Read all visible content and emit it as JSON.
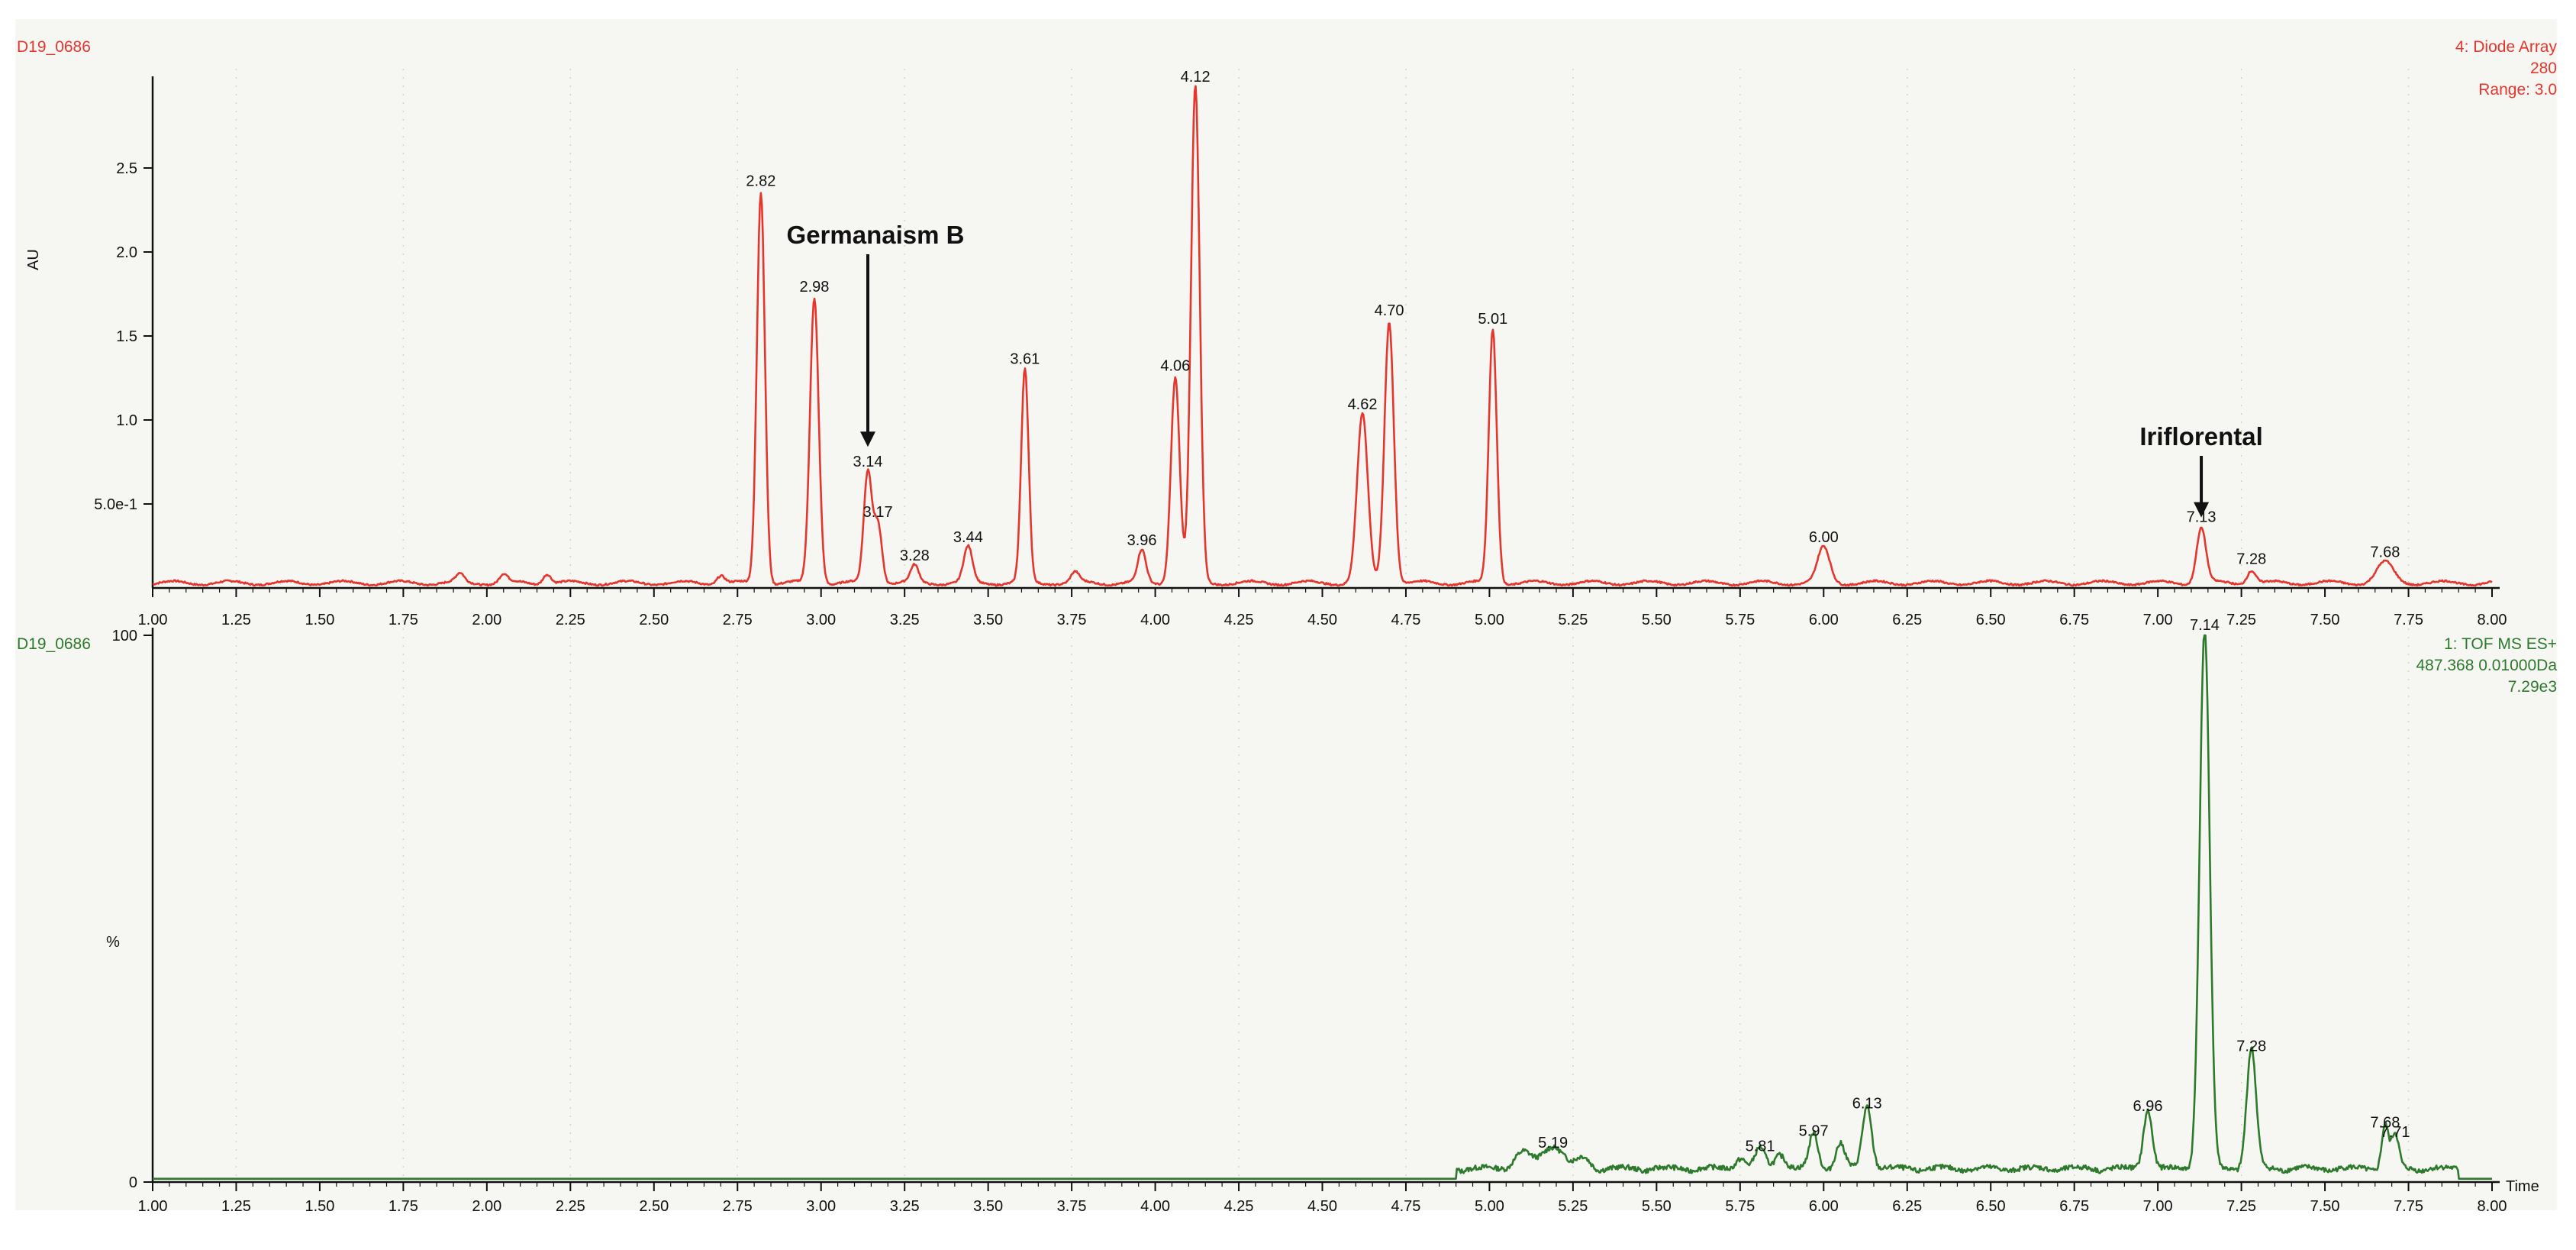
{
  "chart_data": [
    {
      "type": "line",
      "panel": "top",
      "color": "#e5362e",
      "sample": "D19_0686",
      "header_lines": [
        "4: Diode Array",
        "280",
        "Range: 3.0"
      ],
      "ylabel": "AU",
      "xlabel": "",
      "xlim": [
        1.0,
        8.0
      ],
      "ylim": [
        0,
        3.0
      ],
      "x_ticks": [
        "1.00",
        "1.25",
        "1.50",
        "1.75",
        "2.00",
        "2.25",
        "2.50",
        "2.75",
        "3.00",
        "3.25",
        "3.50",
        "3.75",
        "4.00",
        "4.25",
        "4.50",
        "4.75",
        "5.00",
        "5.25",
        "5.50",
        "5.75",
        "6.00",
        "6.25",
        "6.50",
        "6.75",
        "7.00",
        "7.25",
        "7.50",
        "7.75",
        "8.00"
      ],
      "y_ticks": [
        {
          "value": 0.5,
          "label": "5.0e-1"
        },
        {
          "value": 1.0,
          "label": "1.0"
        },
        {
          "value": 1.5,
          "label": "1.5"
        },
        {
          "value": 2.0,
          "label": "2.0"
        },
        {
          "value": 2.5,
          "label": "2.5"
        }
      ],
      "baseline": 0.03,
      "peaks": [
        {
          "x": 1.92,
          "y": 0.05,
          "w": 0.012
        },
        {
          "x": 2.05,
          "y": 0.05,
          "w": 0.012
        },
        {
          "x": 2.18,
          "y": 0.06,
          "w": 0.012
        },
        {
          "x": 2.7,
          "y": 0.05,
          "w": 0.012
        },
        {
          "x": 2.82,
          "y": 2.33,
          "w": 0.012,
          "label": "2.82"
        },
        {
          "x": 2.98,
          "y": 1.7,
          "w": 0.013,
          "label": "2.98"
        },
        {
          "x": 3.14,
          "y": 0.66,
          "w": 0.012,
          "label": "3.14"
        },
        {
          "x": 3.17,
          "y": 0.36,
          "w": 0.012,
          "label": "3.17"
        },
        {
          "x": 3.28,
          "y": 0.1,
          "w": 0.012,
          "label": "3.28"
        },
        {
          "x": 3.44,
          "y": 0.21,
          "w": 0.013,
          "label": "3.44"
        },
        {
          "x": 3.61,
          "y": 1.27,
          "w": 0.011,
          "label": "3.61"
        },
        {
          "x": 3.76,
          "y": 0.06,
          "w": 0.012
        },
        {
          "x": 3.96,
          "y": 0.19,
          "w": 0.012,
          "label": "3.96"
        },
        {
          "x": 4.06,
          "y": 1.23,
          "w": 0.013,
          "label": "4.06"
        },
        {
          "x": 4.12,
          "y": 2.95,
          "w": 0.013,
          "label": "4.12"
        },
        {
          "x": 4.62,
          "y": 1.0,
          "w": 0.016,
          "label": "4.62"
        },
        {
          "x": 4.7,
          "y": 1.56,
          "w": 0.014,
          "label": "4.70"
        },
        {
          "x": 5.01,
          "y": 1.51,
          "w": 0.012,
          "label": "5.01"
        },
        {
          "x": 6.0,
          "y": 0.21,
          "w": 0.018,
          "label": "6.00"
        },
        {
          "x": 7.13,
          "y": 0.33,
          "w": 0.014,
          "label": "7.13"
        },
        {
          "x": 7.28,
          "y": 0.08,
          "w": 0.013,
          "label": "7.28"
        },
        {
          "x": 7.68,
          "y": 0.12,
          "w": 0.025,
          "label": "7.68"
        }
      ],
      "annotations": [
        {
          "text": "Germanaism B",
          "x": 3.14,
          "y": 2.05,
          "arrow_to_y": 0.84
        },
        {
          "text": "Iriflorental",
          "x": 7.13,
          "y": 0.85,
          "arrow_to_y": 0.42
        }
      ]
    },
    {
      "type": "line",
      "panel": "bottom",
      "color": "#2e7a2c",
      "sample": "D19_0686",
      "header_lines": [
        "1: TOF MS ES+",
        "487.368 0.01000Da",
        "7.29e3"
      ],
      "ylabel": "%",
      "xlabel": "Time",
      "xlim": [
        1.0,
        8.0
      ],
      "ylim": [
        0,
        100
      ],
      "x_ticks": [
        "1.00",
        "1.25",
        "1.50",
        "1.75",
        "2.00",
        "2.25",
        "2.50",
        "2.75",
        "3.00",
        "3.25",
        "3.50",
        "3.75",
        "4.00",
        "4.25",
        "4.50",
        "4.75",
        "5.00",
        "5.25",
        "5.50",
        "5.75",
        "6.00",
        "6.25",
        "6.50",
        "6.75",
        "7.00",
        "7.25",
        "7.50",
        "7.75",
        "8.00"
      ],
      "y_ticks": [
        {
          "value": 0,
          "label": "0"
        },
        {
          "value": 100,
          "label": "100"
        }
      ],
      "baseline": 0.6,
      "noise_start": 4.9,
      "noise_end": 7.9,
      "peaks": [
        {
          "x": 5.1,
          "y": 3.0,
          "w": 0.025
        },
        {
          "x": 5.19,
          "y": 4.3,
          "w": 0.03,
          "label": "5.19"
        },
        {
          "x": 5.28,
          "y": 2.0,
          "w": 0.02
        },
        {
          "x": 5.75,
          "y": 2.0,
          "w": 0.015
        },
        {
          "x": 5.81,
          "y": 3.7,
          "w": 0.015,
          "label": "5.81"
        },
        {
          "x": 5.87,
          "y": 2.9,
          "w": 0.015
        },
        {
          "x": 5.97,
          "y": 6.5,
          "w": 0.013,
          "label": "5.97"
        },
        {
          "x": 6.05,
          "y": 4.5,
          "w": 0.014
        },
        {
          "x": 6.13,
          "y": 11.5,
          "w": 0.014,
          "label": "6.13"
        },
        {
          "x": 6.97,
          "y": 11.0,
          "w": 0.013,
          "label": "6.96"
        },
        {
          "x": 7.14,
          "y": 99.0,
          "w": 0.015,
          "label": "7.14"
        },
        {
          "x": 7.28,
          "y": 22.0,
          "w": 0.014,
          "label": "7.28"
        },
        {
          "x": 7.68,
          "y": 8.0,
          "w": 0.01,
          "label": "7.68"
        },
        {
          "x": 7.71,
          "y": 6.3,
          "w": 0.011,
          "label": "7.71"
        }
      ]
    }
  ]
}
